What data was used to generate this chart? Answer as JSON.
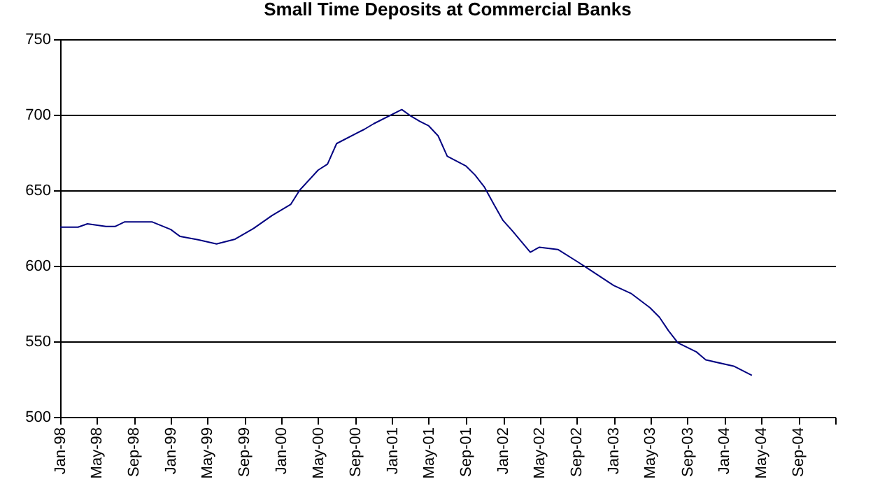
{
  "chart_data": {
    "type": "line",
    "title": "Small Time Deposits at Commercial Banks",
    "x": [
      "1998-01",
      "1998-03",
      "1998-04",
      "1998-06",
      "1998-07",
      "1998-08",
      "1998-11",
      "1999-01",
      "1999-02",
      "1999-04",
      "1999-06",
      "1999-08",
      "1999-10",
      "1999-12",
      "2000-02",
      "2000-03",
      "2000-05",
      "2000-06",
      "2000-07",
      "2000-10",
      "2000-11",
      "2001-02",
      "2001-03",
      "2001-04",
      "2001-05",
      "2001-06",
      "2001-07",
      "2001-09",
      "2001-10",
      "2001-11",
      "2001-12",
      "2002-01",
      "2002-02",
      "2002-04",
      "2002-05",
      "2002-07",
      "2002-09",
      "2002-10",
      "2003-01",
      "2003-03",
      "2003-05",
      "2003-06",
      "2003-07",
      "2003-08",
      "2003-10",
      "2003-11",
      "2004-02",
      "2004-04"
    ],
    "series": [
      {
        "color": "#000080",
        "values": [
          625.6,
          625.6,
          627.8,
          626,
          626,
          629,
          629,
          624,
          619.4,
          617.2,
          614.5,
          617.6,
          624.7,
          633.3,
          640.7,
          650,
          663.3,
          667.3,
          680.9,
          690.4,
          694.1,
          703.4,
          699.4,
          695.7,
          692.6,
          686,
          672.5,
          666,
          660,
          652,
          641,
          630,
          623.1,
          609,
          612.3,
          610.8,
          603,
          599.1,
          587,
          581.5,
          572.2,
          566,
          557,
          549,
          543,
          537.7,
          533.6,
          527.5
        ]
      }
    ],
    "xlim": [
      "1998-01",
      "2005-01"
    ],
    "xticks": [
      {
        "value": "1998-01",
        "label": "Jan-98"
      },
      {
        "value": "1998-05",
        "label": "May-98"
      },
      {
        "value": "1998-09",
        "label": "Sep-98"
      },
      {
        "value": "1999-01",
        "label": "Jan-99"
      },
      {
        "value": "1999-05",
        "label": "May-99"
      },
      {
        "value": "1999-09",
        "label": "Sep-99"
      },
      {
        "value": "2000-01",
        "label": "Jan-00"
      },
      {
        "value": "2000-05",
        "label": "May-00"
      },
      {
        "value": "2000-09",
        "label": "Sep-00"
      },
      {
        "value": "2001-01",
        "label": "Jan-01"
      },
      {
        "value": "2001-05",
        "label": "May-01"
      },
      {
        "value": "2001-09",
        "label": "Sep-01"
      },
      {
        "value": "2002-01",
        "label": "Jan-02"
      },
      {
        "value": "2002-05",
        "label": "May-02"
      },
      {
        "value": "2002-09",
        "label": "Sep-02"
      },
      {
        "value": "2003-01",
        "label": "Jan-03"
      },
      {
        "value": "2003-05",
        "label": "May-03"
      },
      {
        "value": "2003-09",
        "label": "Sep-03"
      },
      {
        "value": "2004-01",
        "label": "Jan-04"
      },
      {
        "value": "2004-05",
        "label": "May-04"
      },
      {
        "value": "2004-09",
        "label": "Sep-04"
      },
      {
        "value": "2005-01",
        "label": null
      }
    ],
    "ylim": [
      500,
      750
    ],
    "yticks": [
      500,
      550,
      600,
      650,
      700,
      750
    ],
    "grid": "y"
  }
}
